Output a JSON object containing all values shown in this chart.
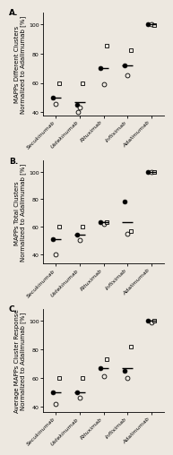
{
  "panels": [
    {
      "label": "A.",
      "ylabel": "MAPPs Different Clusters\nNormalized to Adalimumab [%]",
      "ylim": [
        38,
        108
      ],
      "yticks": [
        40,
        60,
        80,
        100
      ],
      "categories": [
        "Secukinumab",
        "Ustekinumab",
        "Rituximab",
        "Infliximab",
        "Adalimumab"
      ],
      "data": {
        "filled_circle": [
          50,
          45,
          70,
          72,
          100
        ],
        "open_circle": [
          46,
          43,
          59,
          65,
          100
        ],
        "open_square": [
          60,
          60,
          85,
          82,
          99
        ]
      },
      "extra_open_circle": [
        null,
        40,
        null,
        null,
        null
      ],
      "means": [
        50,
        47,
        70,
        72,
        100
      ]
    },
    {
      "label": "B.",
      "ylabel": "MAPPs Total Clusters\nNormalized to Adalimumab [%]",
      "ylim": [
        33,
        108
      ],
      "yticks": [
        40,
        60,
        80,
        100
      ],
      "categories": [
        "Secukinumab",
        "Ustekinumab",
        "Rituximab",
        "Infliximab",
        "Adalimumab"
      ],
      "data": {
        "filled_circle": [
          51,
          54,
          63,
          78,
          100
        ],
        "open_circle": [
          40,
          50,
          62,
          55,
          100
        ],
        "open_square": [
          60,
          60,
          63,
          57,
          100
        ]
      },
      "extra_open_circle": [
        null,
        null,
        null,
        null,
        null
      ],
      "means": [
        51,
        54,
        63,
        63,
        100
      ]
    },
    {
      "label": "C.",
      "ylabel": "Average MAPPs Cluster Response\nNormalized to Adalimumab [%]",
      "ylim": [
        36,
        108
      ],
      "yticks": [
        40,
        60,
        80,
        100
      ],
      "categories": [
        "Secukinumab",
        "Ustekinumab",
        "Rituximab",
        "Infliximab",
        "Adalimumab"
      ],
      "data": {
        "filled_circle": [
          50,
          50,
          67,
          65,
          100
        ],
        "open_circle": [
          42,
          46,
          61,
          60,
          99
        ],
        "open_square": [
          60,
          60,
          73,
          82,
          100
        ]
      },
      "extra_open_circle": [
        null,
        null,
        null,
        null,
        null
      ],
      "means": [
        50,
        50,
        67,
        67,
        100
      ]
    }
  ],
  "bg_color": "#ede8e0",
  "marker_size": 3.5,
  "mean_line_lw": 1.0,
  "fontsize_label": 5.0,
  "fontsize_tick": 4.5,
  "fontsize_panel": 6.5,
  "jitter_fc": -0.13,
  "jitter_oc": 0.0,
  "jitter_os": 0.13
}
